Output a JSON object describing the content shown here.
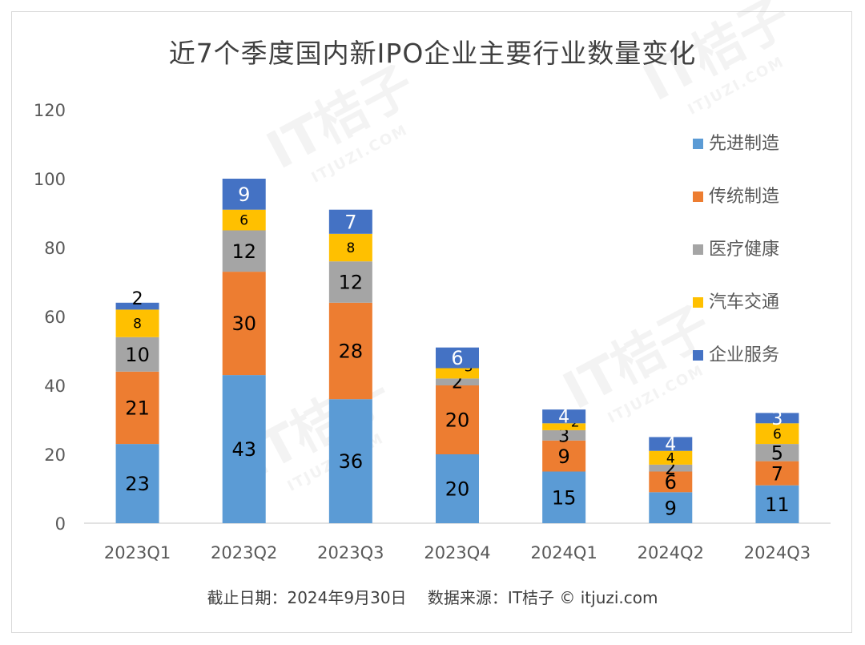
{
  "title": "近7个季度国内新IPO企业主要行业数量变化",
  "footer": {
    "date": "截止日期：2024年9月30日",
    "source": "数据来源：IT桔子 © itjuzi.com"
  },
  "watermark": {
    "brand": "IT桔子",
    "url": "ITJUZI.COM"
  },
  "chart_data": {
    "type": "bar",
    "stacked": true,
    "categories": [
      "2023Q1",
      "2023Q2",
      "2023Q3",
      "2023Q4",
      "2024Q1",
      "2024Q2",
      "2024Q3"
    ],
    "ylim": [
      0,
      120
    ],
    "yticks": [
      0,
      20,
      40,
      60,
      80,
      100,
      120
    ],
    "grid": false,
    "legend_position": "right",
    "series": [
      {
        "name": "先进制造",
        "color": "#5b9bd5",
        "values": [
          23,
          43,
          36,
          20,
          15,
          9,
          11
        ]
      },
      {
        "name": "传统制造",
        "color": "#ed7d31",
        "values": [
          21,
          30,
          28,
          20,
          9,
          6,
          7
        ]
      },
      {
        "name": "医疗健康",
        "color": "#a5a5a5",
        "values": [
          10,
          12,
          12,
          2,
          3,
          2,
          5
        ]
      },
      {
        "name": "汽车交通",
        "color": "#ffc000",
        "values": [
          8,
          6,
          8,
          3,
          2,
          4,
          6
        ]
      },
      {
        "name": "企业服务",
        "color": "#4472c4",
        "values": [
          2,
          9,
          7,
          6,
          4,
          4,
          3
        ]
      }
    ]
  }
}
